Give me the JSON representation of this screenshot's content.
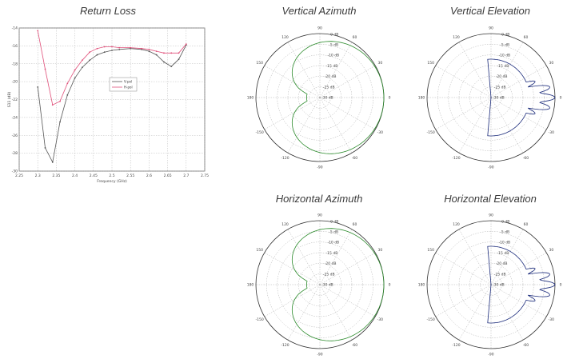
{
  "colors": {
    "vpol": "#555555",
    "hpol": "#e0507a",
    "azimuth": "#2a8a2a",
    "elevation": "#1a2a7a",
    "grid": "#9a9a9a"
  },
  "chart_data": [
    {
      "type": "line",
      "title": "Return Loss",
      "xlabel": "Frequency (GHz)",
      "ylabel": "S11 (dB)",
      "xlim": [
        2.25,
        2.75
      ],
      "ylim": [
        -30,
        -14
      ],
      "x_ticks": [
        "2.25",
        "2.3",
        "2.35",
        "2.4",
        "2.45",
        "2.5",
        "2.55",
        "2.6",
        "2.65",
        "2.7",
        "2.75"
      ],
      "y_ticks": [
        "-14",
        "-16",
        "-18",
        "-20",
        "-22",
        "-24",
        "-26",
        "-28",
        "-30"
      ],
      "series": [
        {
          "name": "V-pol",
          "x": [
            2.3,
            2.32,
            2.34,
            2.36,
            2.38,
            2.4,
            2.42,
            2.44,
            2.46,
            2.48,
            2.5,
            2.52,
            2.55,
            2.58,
            2.6,
            2.62,
            2.64,
            2.66,
            2.68,
            2.7
          ],
          "values": [
            -20.6,
            -27.4,
            -29.0,
            -24.5,
            -21.5,
            -19.6,
            -18.4,
            -17.6,
            -17.0,
            -16.7,
            -16.5,
            -16.4,
            -16.3,
            -16.4,
            -16.6,
            -17.0,
            -17.8,
            -18.3,
            -17.5,
            -15.9
          ]
        },
        {
          "name": "H-pol",
          "x": [
            2.3,
            2.32,
            2.34,
            2.36,
            2.38,
            2.4,
            2.42,
            2.44,
            2.46,
            2.48,
            2.5,
            2.52,
            2.55,
            2.58,
            2.6,
            2.62,
            2.64,
            2.66,
            2.68,
            2.7
          ],
          "values": [
            -14.3,
            -18.6,
            -22.6,
            -22.2,
            -20.2,
            -18.7,
            -17.6,
            -16.7,
            -16.3,
            -16.1,
            -16.1,
            -16.2,
            -16.2,
            -16.3,
            -16.4,
            -16.6,
            -16.8,
            -16.8,
            -16.8,
            -15.8
          ]
        }
      ]
    },
    {
      "type": "polar",
      "title": "Vertical Azimuth",
      "angle_labels": [
        "0",
        "30",
        "60",
        "90",
        "120",
        "150",
        "180",
        "-150",
        "-120",
        "-90",
        "-60",
        "-30"
      ],
      "radial_labels": [
        "0 dB",
        "-5 dB",
        "-10 dB",
        "-15 dB",
        "-20 dB",
        "-25 dB",
        "-30 dB"
      ],
      "pattern": "azimuth"
    },
    {
      "type": "polar",
      "title": "Vertical Elevation",
      "angle_labels": [
        "0",
        "30",
        "60",
        "90",
        "120",
        "150",
        "180",
        "-150",
        "-120",
        "-90",
        "-60",
        "-30"
      ],
      "radial_labels": [
        "0 dB",
        "-5 dB",
        "-10 dB",
        "-15 dB",
        "-20 dB",
        "-25 dB",
        "-30 dB"
      ],
      "pattern": "elevation"
    },
    {
      "type": "polar",
      "title": "Horizontal Azimuth",
      "angle_labels": [
        "0",
        "30",
        "60",
        "90",
        "120",
        "150",
        "180",
        "-150",
        "-120",
        "-90",
        "-60",
        "-30"
      ],
      "radial_labels": [
        "0 dB",
        "-5 dB",
        "-10 dB",
        "-15 dB",
        "-20 dB",
        "-25 dB",
        "-30 dB"
      ],
      "pattern": "azimuth"
    },
    {
      "type": "polar",
      "title": "Horizontal Elevation",
      "angle_labels": [
        "0",
        "30",
        "60",
        "90",
        "120",
        "150",
        "180",
        "-150",
        "-120",
        "-90",
        "-60",
        "-30"
      ],
      "radial_labels": [
        "0 dB",
        "-5 dB",
        "-10 dB",
        "-15 dB",
        "-20 dB",
        "-25 dB",
        "-30 dB"
      ],
      "pattern": "elevation"
    }
  ]
}
